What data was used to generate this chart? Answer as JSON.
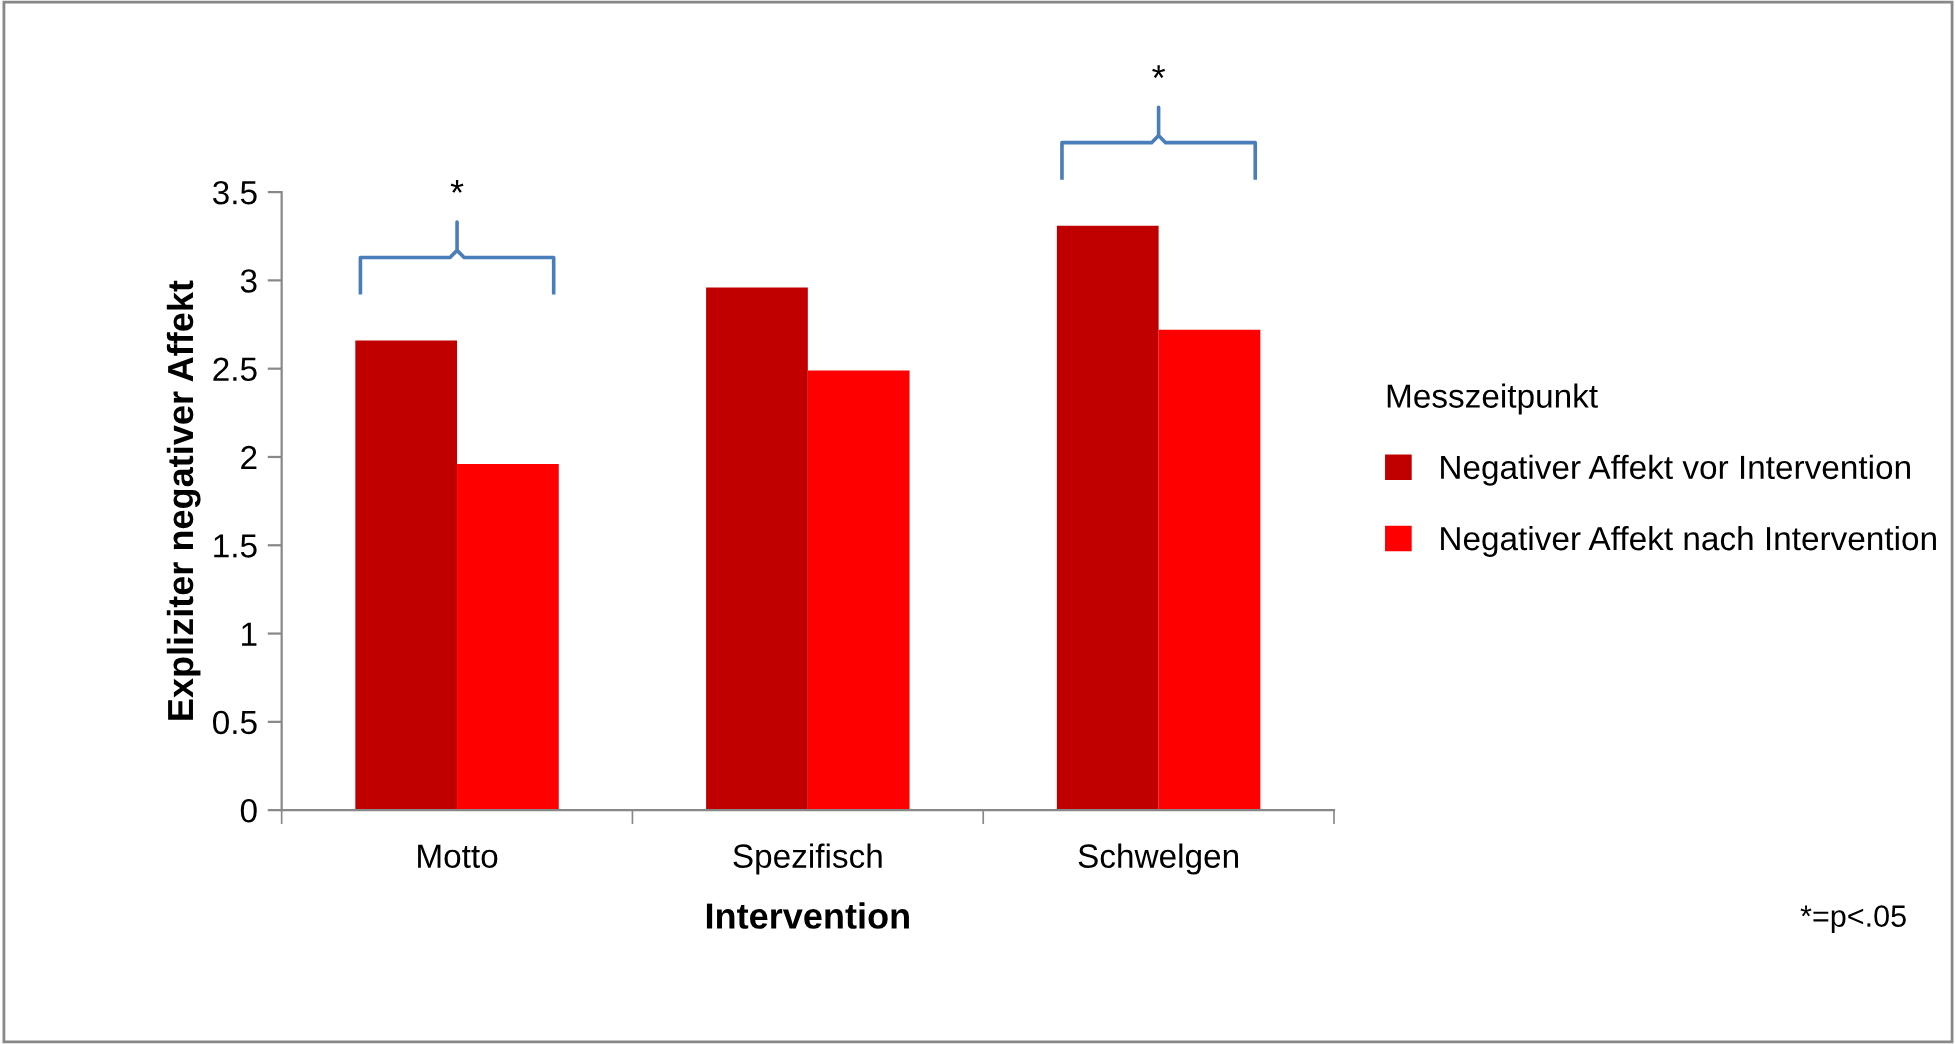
{
  "chart_data": {
    "type": "bar",
    "xlabel": "Intervention",
    "ylabel": "Expliziter negativer Affekt",
    "legend_title": "Messzeitpunkt",
    "legend": "right",
    "categories": [
      "Motto",
      "Spezifisch",
      "Schwelgen"
    ],
    "series": [
      {
        "name": "Negativer Affekt vor Intervention",
        "color": "#c00000",
        "values": [
          2.66,
          2.96,
          3.31
        ]
      },
      {
        "name": "Negativer Affekt nach Intervention",
        "color": "#ff0000",
        "values": [
          1.96,
          2.49,
          2.72
        ]
      }
    ],
    "ylim": [
      0,
      3.5
    ],
    "yticks": [
      0,
      {
        "value": 0.5,
        "label": "0.5"
      },
      1,
      {
        "value": 1.5,
        "label": "1.5"
      },
      2,
      {
        "value": 2.5,
        "label": "2.5"
      },
      3,
      {
        "value": 3.5,
        "label": "3.5"
      }
    ],
    "grid": false,
    "annotations": [
      "*",
      "*",
      "*=p<.05"
    ]
  }
}
